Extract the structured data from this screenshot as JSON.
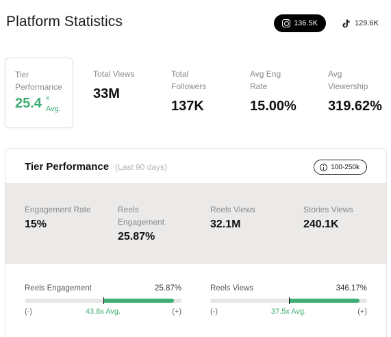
{
  "header": {
    "title": "Platform Statistics",
    "platforms": [
      {
        "name": "Instagram",
        "icon": "instagram-icon",
        "count": "136.5K",
        "active": true
      },
      {
        "name": "TikTok",
        "icon": "tiktok-icon",
        "count": "129.6K",
        "active": false
      }
    ]
  },
  "summary": {
    "tier": {
      "label": "Tier Performance",
      "value": "25.4",
      "suffix_x": "x",
      "suffix_avg": "Avg."
    },
    "stats": [
      {
        "label": "Total Views",
        "value": "33M"
      },
      {
        "label": "Total Followers",
        "value": "137K"
      },
      {
        "label": "Avg Eng Rate",
        "value": "15.00%"
      },
      {
        "label": "Avg Viewership",
        "value": "319.62%"
      }
    ]
  },
  "tier_panel": {
    "title": "Tier Performance",
    "subtitle": "(Last 90 days)",
    "range_badge": "100-250k",
    "stats": [
      {
        "label": "Engagement Rate",
        "value": "15%"
      },
      {
        "label": "Reels Engagement",
        "value": "25.87%"
      },
      {
        "label": "Reels Views",
        "value": "32.1M"
      },
      {
        "label": "Stories Views",
        "value": "240.1K"
      }
    ],
    "meters": [
      {
        "label": "Reels Engagement",
        "value": "25.87%",
        "avg_label": "43.8x Avg.",
        "minus": "(-)",
        "plus": "(+)",
        "avg_fraction": 0.5,
        "fill_fraction": 0.95
      },
      {
        "label": "Reels Views",
        "value": "346.17%",
        "avg_label": "37.5x Avg.",
        "minus": "(-)",
        "plus": "(+)",
        "avg_fraction": 0.5,
        "fill_fraction": 0.95
      }
    ]
  },
  "colors": {
    "accent": "#3fae74",
    "badge_bg": "#000000",
    "band_bg": "#ebeae9"
  }
}
